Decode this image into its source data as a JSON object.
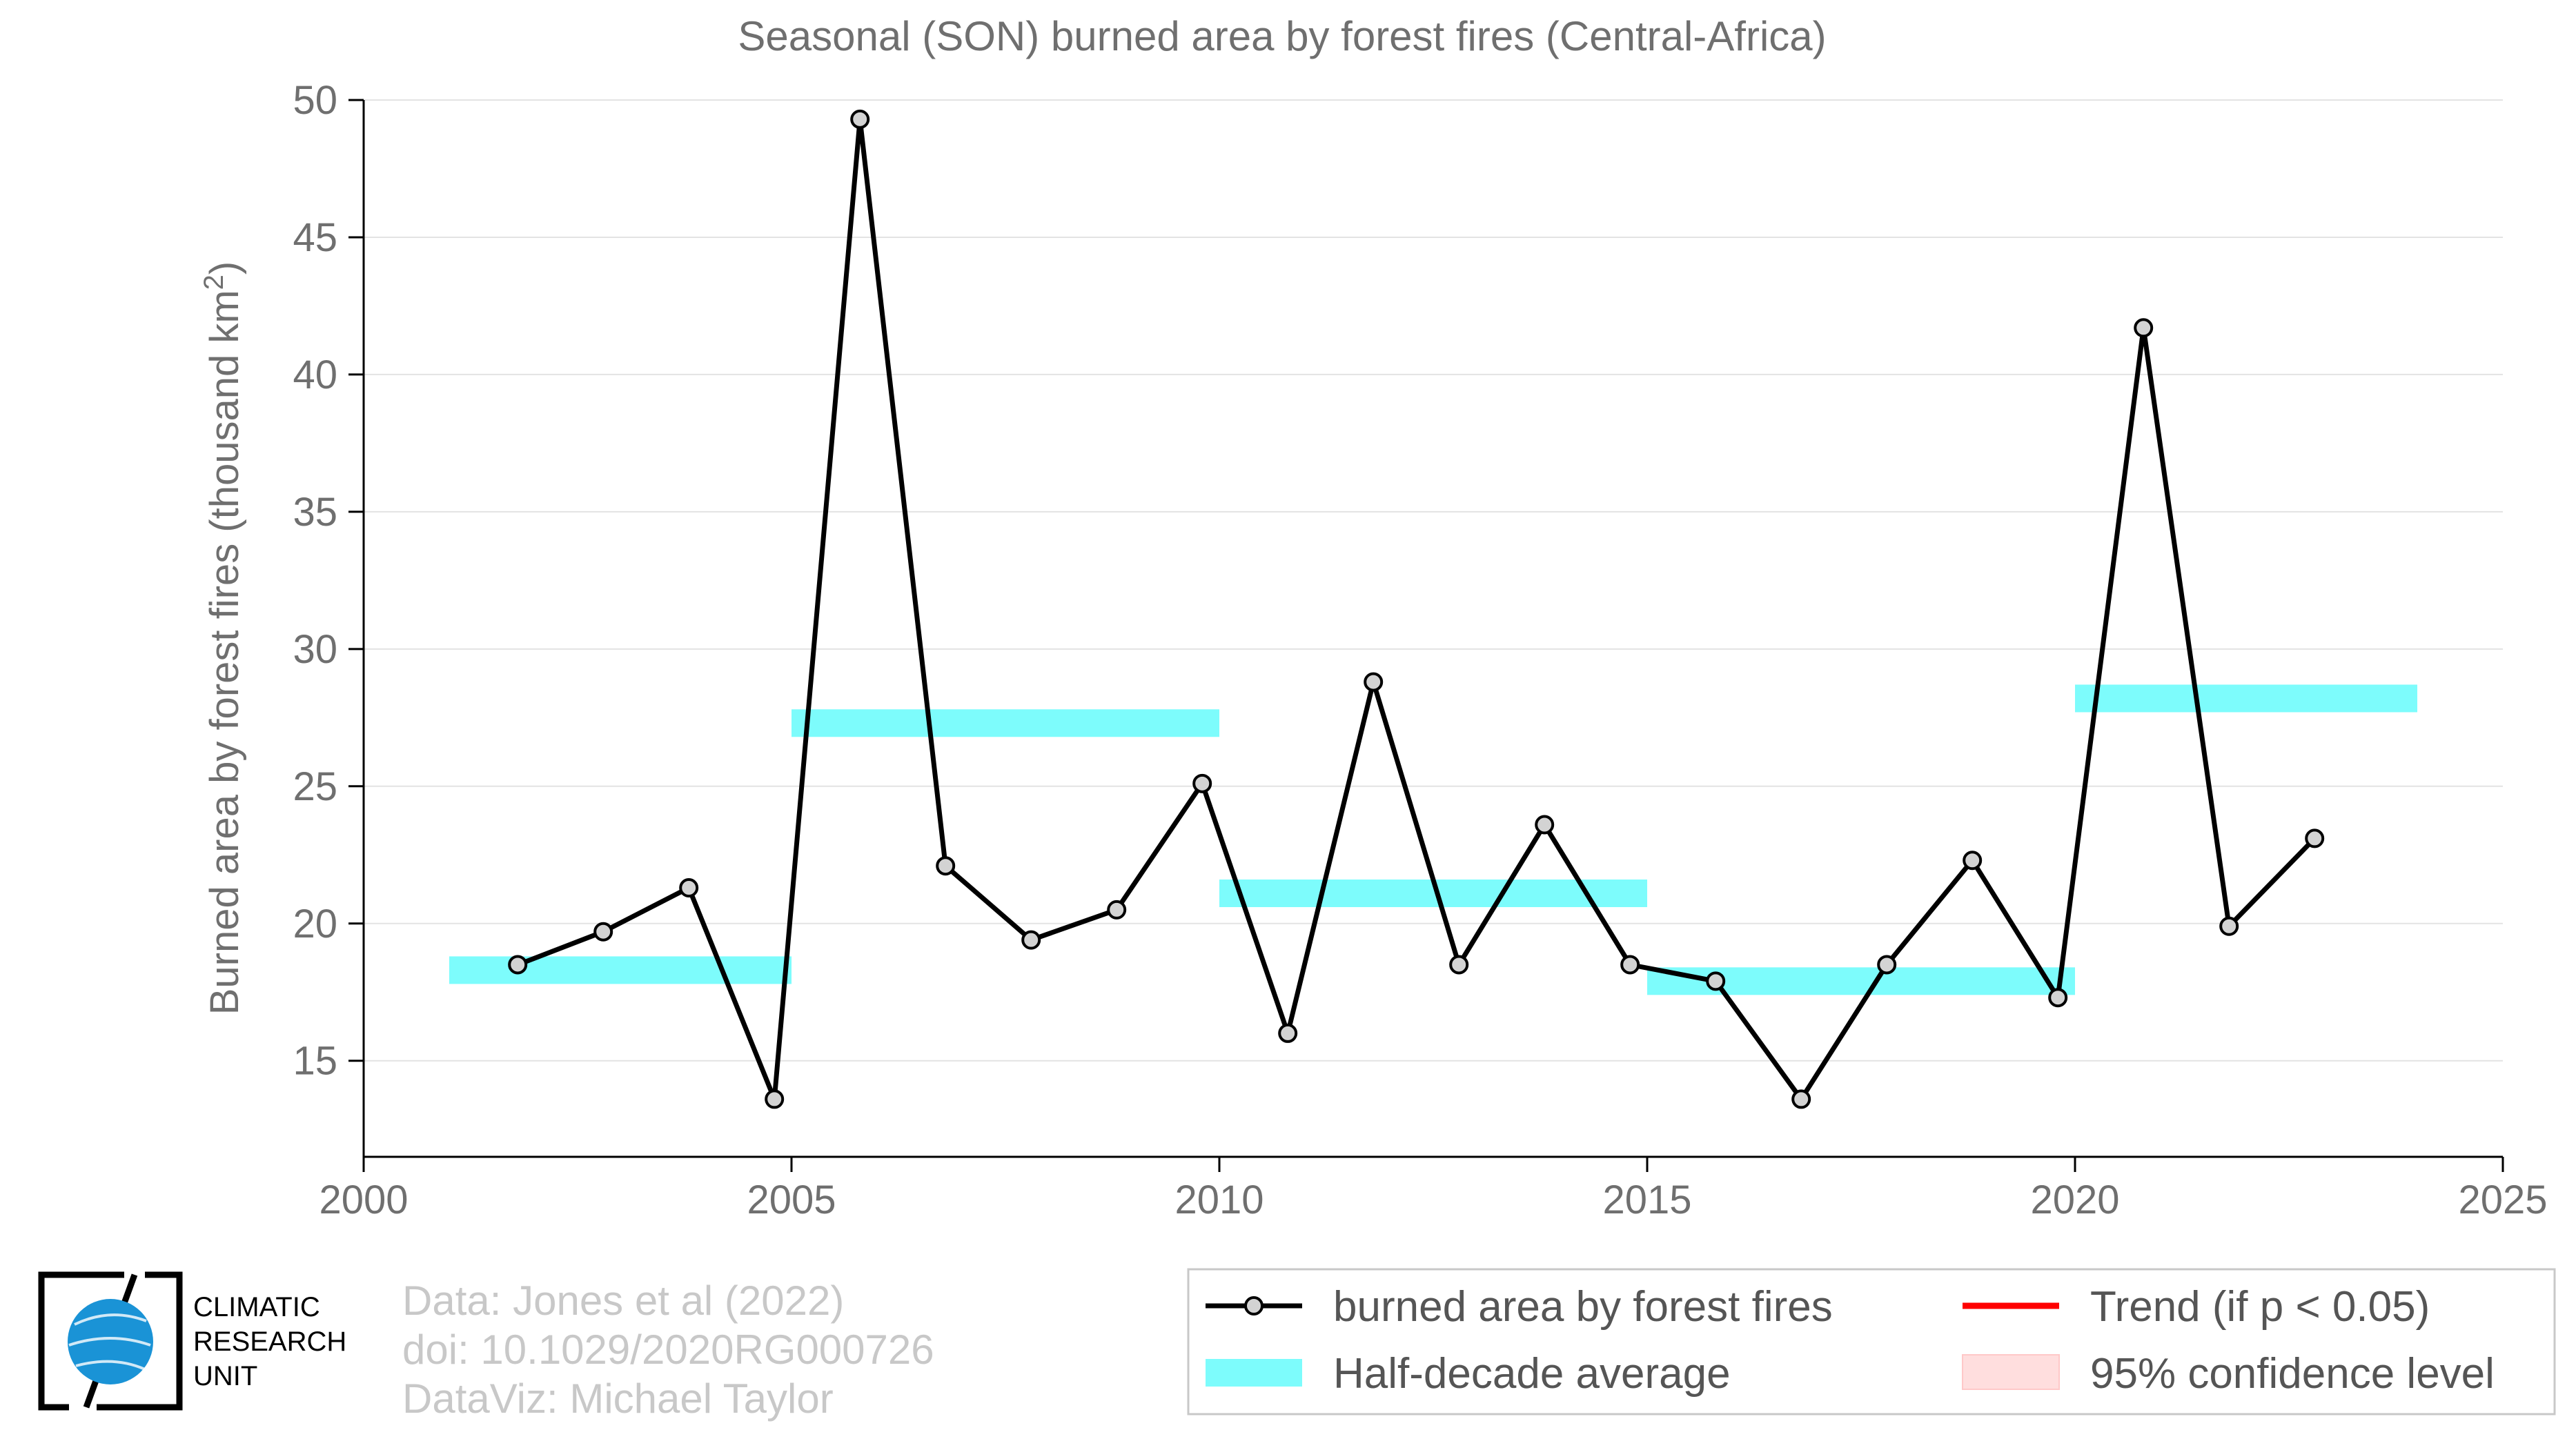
{
  "chart_data": {
    "type": "line",
    "title": "Seasonal (SON) burned area by forest fires (Central-Africa)",
    "ylabel": "Burned area by forest fires (thousand km",
    "ylabel_sup": "2",
    "ylabel_close": ")",
    "xlabel": "",
    "xlim": [
      2000,
      2025
    ],
    "ylim": [
      11.5,
      50
    ],
    "xticks": [
      "2000",
      "2005",
      "2010",
      "2015",
      "2020",
      "2025"
    ],
    "yticks": [
      "15",
      "20",
      "25",
      "30",
      "35",
      "40",
      "45",
      "50"
    ],
    "grid": "horizontal",
    "series": [
      {
        "name": "burned area by forest fires",
        "color": "#000000",
        "x": [
          2001.8,
          2002.8,
          2003.8,
          2004.8,
          2005.8,
          2006.8,
          2007.8,
          2008.8,
          2009.8,
          2010.8,
          2011.8,
          2012.8,
          2013.8,
          2014.8,
          2015.8,
          2016.8,
          2017.8,
          2018.8,
          2019.8,
          2020.8,
          2021.8,
          2022.8
        ],
        "y": [
          18.5,
          19.7,
          21.3,
          13.6,
          49.3,
          22.1,
          19.4,
          20.5,
          25.1,
          16.0,
          28.8,
          18.5,
          23.6,
          18.5,
          17.9,
          13.6,
          18.5,
          22.3,
          17.3,
          41.7,
          19.9,
          23.1
        ]
      },
      {
        "name": "Half-decade average",
        "color": "#7dfcfc",
        "segments": [
          {
            "x0": 2001,
            "x1": 2005,
            "y": 18.3
          },
          {
            "x0": 2005,
            "x1": 2010,
            "y": 27.3
          },
          {
            "x0": 2010,
            "x1": 2015,
            "y": 21.1
          },
          {
            "x0": 2015,
            "x1": 2020,
            "y": 17.9
          },
          {
            "x0": 2020,
            "x1": 2024,
            "y": 28.2
          }
        ]
      }
    ],
    "legend": {
      "placement": "bottom-right",
      "entries": [
        {
          "label": "burned area by forest fires",
          "kind": "line-marker",
          "color": "#000000"
        },
        {
          "label": "Trend (if p < 0.05)",
          "kind": "line",
          "color": "#ff0000"
        },
        {
          "label": "Half-decade average",
          "kind": "band",
          "color": "#7dfcfc"
        },
        {
          "label": "95% confidence level",
          "kind": "patch",
          "color": "#ffdede"
        }
      ]
    }
  },
  "credits": {
    "line1": "Data: Jones et al (2022)",
    "line2": "doi: 10.1029/2020RG000726",
    "line3": "DataViz: Michael Taylor"
  },
  "logo": {
    "line1": "CLIMATIC",
    "line2": "RESEARCH",
    "line3": "UNIT"
  }
}
